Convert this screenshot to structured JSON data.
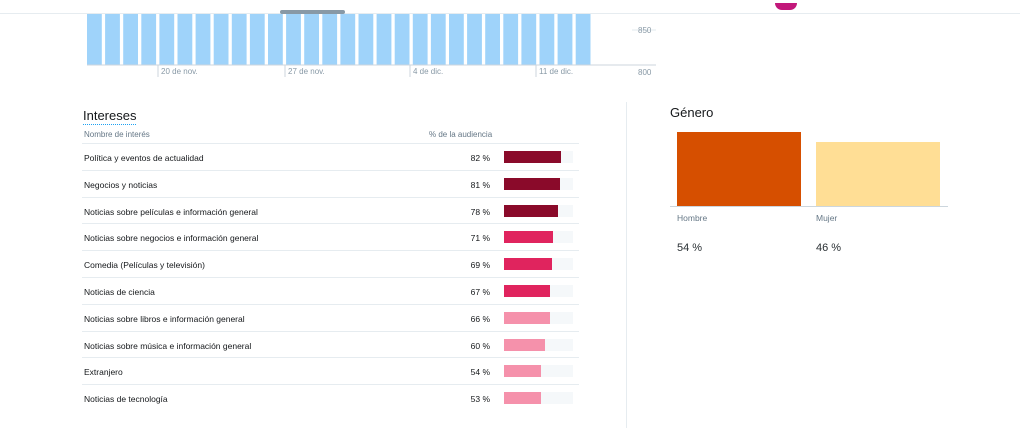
{
  "chart_data": {
    "type": "bar",
    "x_tick_labels": [
      "20 de nov.",
      "27 de nov.",
      "4 de dic.",
      "11 de dic."
    ],
    "y_tick_labels": [
      "850",
      "800"
    ],
    "bar_count": 28,
    "visible_ylim": [
      800,
      850
    ],
    "note_values": "bars exceed the visible top of the cropped view",
    "bar_color": "#9fd3fa"
  },
  "interests": {
    "title": "Intereses",
    "col_name": "Nombre de interés",
    "col_pct": "% de la audiencia",
    "rows": [
      {
        "name": "Política y eventos de actualidad",
        "pct": "82 %",
        "value": 82,
        "color": "#8a0a2a"
      },
      {
        "name": "Negocios y noticias",
        "pct": "81 %",
        "value": 81,
        "color": "#8a0a2a"
      },
      {
        "name": "Noticias sobre películas e información general",
        "pct": "78 %",
        "value": 78,
        "color": "#8a0a2a"
      },
      {
        "name": "Noticias sobre negocios e información general",
        "pct": "71 %",
        "value": 71,
        "color": "#e0245e"
      },
      {
        "name": "Comedia (Películas y televisión)",
        "pct": "69 %",
        "value": 69,
        "color": "#e0245e"
      },
      {
        "name": "Noticias de ciencia",
        "pct": "67 %",
        "value": 67,
        "color": "#e0245e"
      },
      {
        "name": "Noticias sobre libros e información general",
        "pct": "66 %",
        "value": 66,
        "color": "#f591ab"
      },
      {
        "name": "Noticias sobre música e información general",
        "pct": "60 %",
        "value": 60,
        "color": "#f591ab"
      },
      {
        "name": "Extranjero",
        "pct": "54 %",
        "value": 54,
        "color": "#f591ab"
      },
      {
        "name": "Noticias de tecnología",
        "pct": "53 %",
        "value": 53,
        "color": "#f591ab"
      }
    ]
  },
  "gender": {
    "title": "Género",
    "hombre": {
      "label": "Hombre",
      "value_text": "54 %",
      "value": 54,
      "color": "#d64f00"
    },
    "mujer": {
      "label": "Mujer",
      "value_text": "46 %",
      "value": 46,
      "color": "#ffde95"
    }
  }
}
